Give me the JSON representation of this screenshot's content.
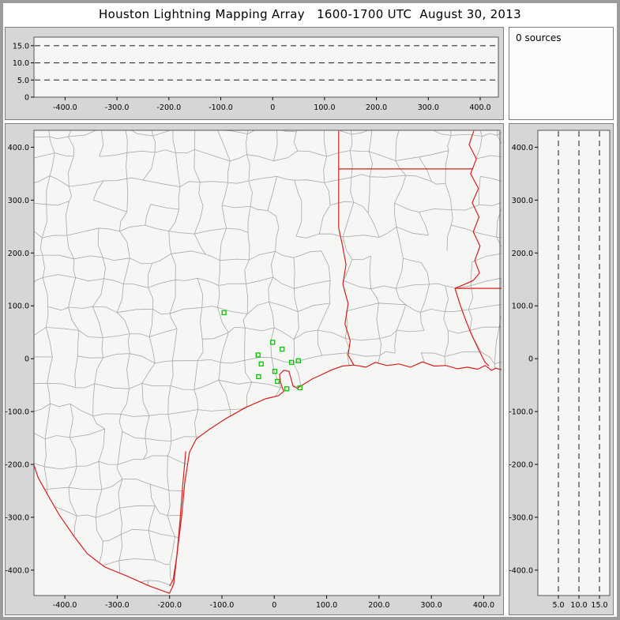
{
  "title": "Houston Lightning Mapping Array   1600-1700 UTC  August 30, 2013",
  "sources_panel": {
    "label": "0 sources"
  },
  "colors": {
    "frame_bg": "#d6d6d6",
    "plot_bg": "#f6f6f4",
    "plot_border": "#555555",
    "county": "#a8a8a8",
    "state": "#d42020",
    "station": "#00c800",
    "dash": "#1a1a1a",
    "text": "#000000"
  },
  "county_grid": {
    "step_km": 48,
    "jitter_km": 13,
    "wiggle_km": 6,
    "seed": 20130830,
    "skip_prob": 0.13,
    "extent_km": [
      -480,
      480
    ]
  },
  "chart_data": [
    {
      "id": "altitude_time",
      "type": "scatter",
      "title": "altitude vs distance (no sources)",
      "xlim": [
        -460,
        435
      ],
      "ylim": [
        0,
        17.5
      ],
      "x_tick_values": [
        -400,
        -300,
        -200,
        -100,
        0,
        100,
        200,
        300,
        400
      ],
      "x_tick_labels": [
        "-400.0",
        "-300.0",
        "-200.0",
        "-100.0",
        "0",
        "100.0",
        "200.0",
        "300.0",
        "400.0"
      ],
      "y_tick_values": [
        15,
        10,
        5,
        0
      ],
      "y_tick_labels": [
        "15.0",
        "10.0",
        "5.0",
        "0"
      ],
      "dashed_gridlines_y": [
        5,
        10,
        15
      ],
      "points": []
    },
    {
      "id": "map",
      "type": "scatter",
      "title": "plan view map (km east / km north of Houston)",
      "xlim": [
        -459,
        431
      ],
      "ylim": [
        -448,
        432
      ],
      "x_tick_values": [
        -400,
        -300,
        -200,
        -100,
        0,
        100,
        200,
        300,
        400
      ],
      "x_tick_labels": [
        "-400.0",
        "-300.0",
        "-200.0",
        "-100.0",
        "0",
        "100.0",
        "200.0",
        "300.0",
        "400.0"
      ],
      "y_tick_values": [
        400,
        300,
        200,
        100,
        0,
        -100,
        -200,
        -300,
        -400
      ],
      "y_tick_labels": [
        "400.0",
        "300.0",
        "200.0",
        "100.0",
        "0",
        "-100.0",
        "-200.0",
        "-300.0",
        "-400.0"
      ],
      "points": [],
      "stations_km": [
        [
          -96,
          87
        ],
        [
          -3,
          31
        ],
        [
          15,
          18
        ],
        [
          -31,
          7
        ],
        [
          33,
          -7
        ],
        [
          46,
          -4
        ],
        [
          -25,
          -10
        ],
        [
          -30,
          -34
        ],
        [
          1,
          -24
        ],
        [
          6,
          -43
        ],
        [
          24,
          -57
        ],
        [
          49,
          -55
        ]
      ],
      "boundaries_km": {
        "coastline": [
          [
            -200,
            -444
          ],
          [
            -192,
            -426
          ],
          [
            -186,
            -371
          ],
          [
            -177,
            -299
          ],
          [
            -171,
            -235
          ],
          [
            -162,
            -177
          ],
          [
            -149,
            -152
          ],
          [
            -126,
            -135
          ],
          [
            -92,
            -113
          ],
          [
            -54,
            -92
          ],
          [
            -17,
            -76
          ],
          [
            8,
            -70
          ],
          [
            18,
            -62
          ],
          [
            12,
            -45
          ],
          [
            10,
            -30
          ],
          [
            18,
            -22
          ],
          [
            28,
            -24
          ],
          [
            32,
            -38
          ],
          [
            36,
            -52
          ],
          [
            44,
            -56
          ],
          [
            60,
            -46
          ],
          [
            73,
            -38
          ],
          [
            95,
            -28
          ],
          [
            110,
            -21
          ],
          [
            130,
            -14
          ],
          [
            152,
            -12
          ],
          [
            175,
            -16
          ],
          [
            193,
            -7
          ],
          [
            215,
            -13
          ],
          [
            238,
            -10
          ],
          [
            260,
            -16
          ],
          [
            283,
            -6
          ],
          [
            305,
            -14
          ],
          [
            328,
            -13
          ],
          [
            350,
            -19
          ],
          [
            369,
            -16
          ],
          [
            388,
            -20
          ],
          [
            403,
            -13
          ],
          [
            415,
            -22
          ],
          [
            423,
            -18
          ],
          [
            434,
            -21
          ]
        ],
        "laguna_madre": [
          [
            -169,
            -175
          ],
          [
            -175,
            -240
          ],
          [
            -180,
            -305
          ],
          [
            -186,
            -372
          ],
          [
            -193,
            -418
          ],
          [
            -200,
            -430
          ]
        ],
        "rio_grande": [
          [
            -200,
            -444
          ],
          [
            -241,
            -429
          ],
          [
            -282,
            -411
          ],
          [
            -324,
            -394
          ],
          [
            -357,
            -369
          ],
          [
            -381,
            -338
          ],
          [
            -411,
            -295
          ],
          [
            -433,
            -257
          ],
          [
            -451,
            -225
          ],
          [
            -459,
            -201
          ]
        ],
        "tx_border_vertical": [
          [
            123,
            431
          ],
          [
            123,
            247
          ]
        ],
        "ar_la_border": [
          [
            123,
            359
          ],
          [
            378,
            359
          ]
        ],
        "mississippi_river": [
          [
            381,
            431
          ],
          [
            372,
            405
          ],
          [
            386,
            378
          ],
          [
            375,
            350
          ],
          [
            390,
            322
          ],
          [
            378,
            295
          ],
          [
            391,
            268
          ],
          [
            380,
            240
          ],
          [
            393,
            213
          ],
          [
            383,
            186
          ],
          [
            392,
            162
          ],
          [
            380,
            148
          ],
          [
            362,
            140
          ],
          [
            345,
            133
          ]
        ],
        "la_ms_border": [
          [
            345,
            133
          ],
          [
            434,
            133
          ]
        ],
        "mississippi_lower": [
          [
            345,
            133
          ],
          [
            355,
            102
          ],
          [
            366,
            72
          ],
          [
            377,
            45
          ],
          [
            390,
            18
          ],
          [
            402,
            -6
          ],
          [
            410,
            -14
          ]
        ],
        "sabine_border": [
          [
            123,
            247
          ],
          [
            130,
            215
          ],
          [
            137,
            178
          ],
          [
            131,
            141
          ],
          [
            141,
            104
          ],
          [
            135,
            66
          ],
          [
            145,
            34
          ],
          [
            141,
            7
          ],
          [
            152,
            -12
          ]
        ]
      }
    },
    {
      "id": "altitude_profile",
      "type": "scatter",
      "title": "altitude vs north distance (no sources)",
      "xlim": [
        0,
        17.5
      ],
      "ylim": [
        -448,
        432
      ],
      "x_tick_values": [
        5,
        10,
        15
      ],
      "x_tick_labels": [
        "5.0",
        "10.0",
        "15.0"
      ],
      "y_tick_values": [
        400,
        300,
        200,
        100,
        0,
        -100,
        -200,
        -300,
        -400
      ],
      "y_tick_labels": [
        "400.0",
        "300.0",
        "200.0",
        "100.0",
        "0",
        "-100.0",
        "-200.0",
        "-300.0",
        "-400.0"
      ],
      "dashed_gridlines_x": [
        5,
        10,
        15
      ],
      "points": []
    }
  ]
}
